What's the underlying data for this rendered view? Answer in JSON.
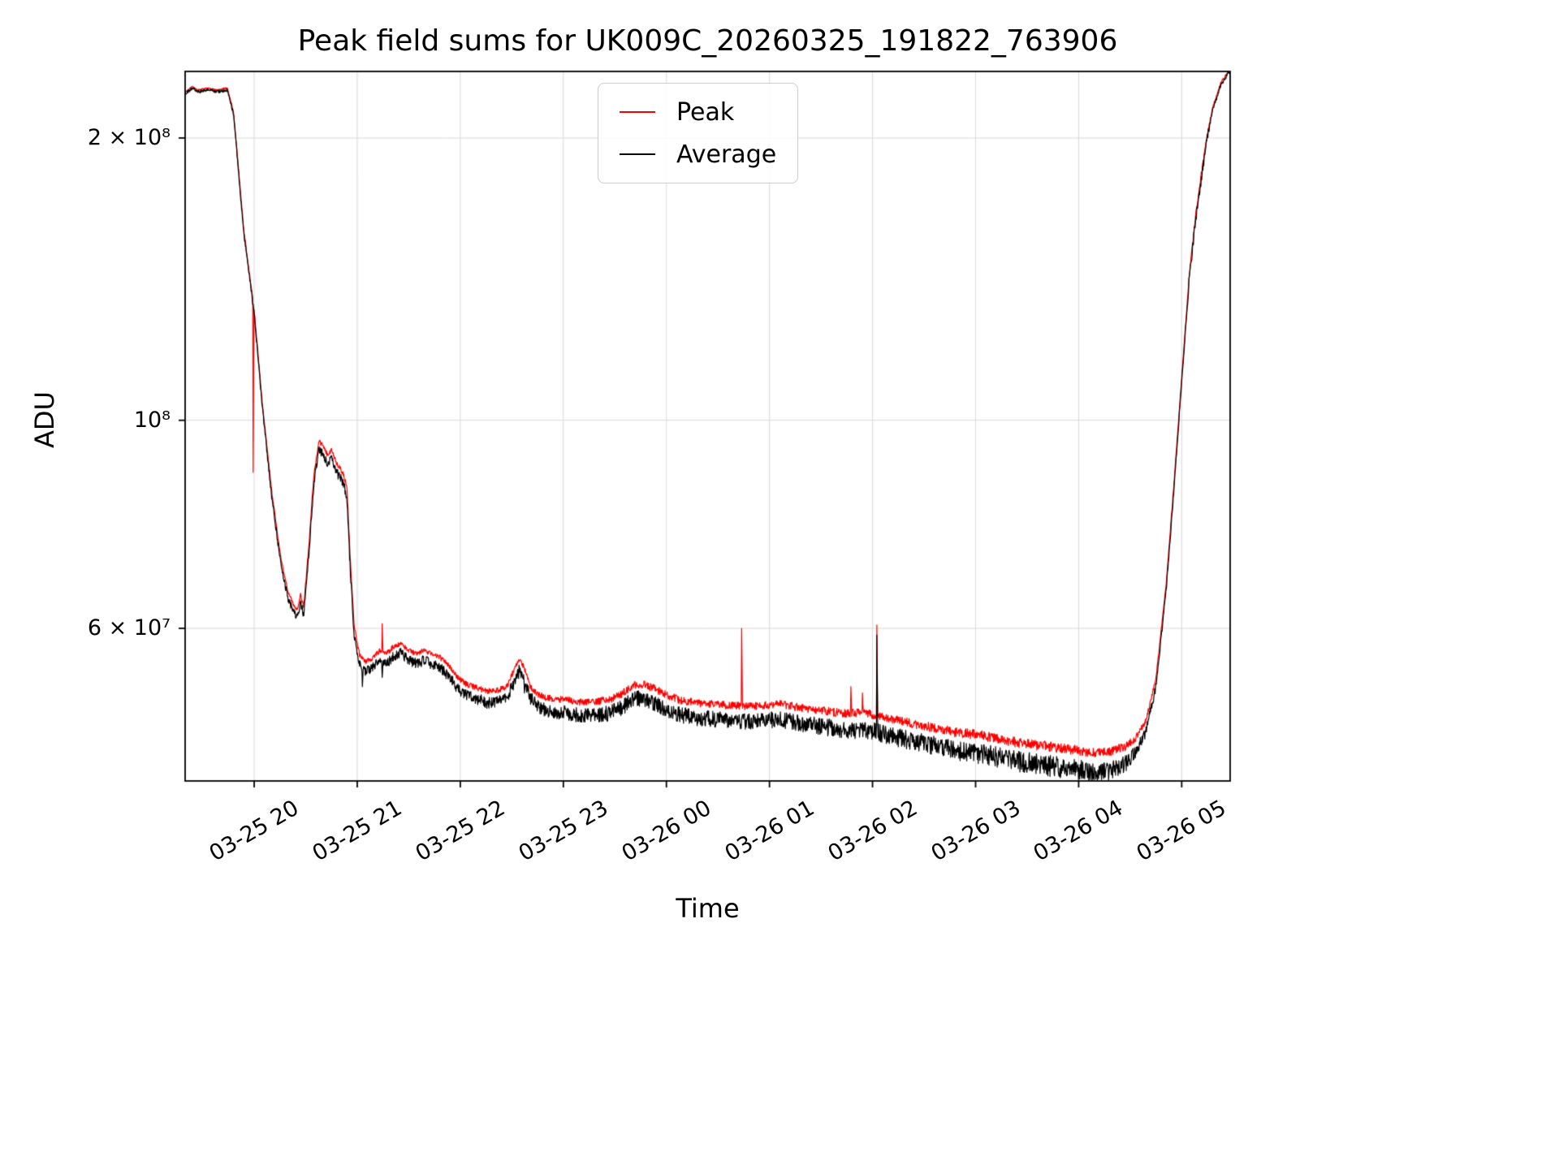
{
  "chart_data": {
    "type": "line",
    "title": "Peak field sums for UK009C_20260325_191822_763906",
    "xlabel": "Time",
    "ylabel": "ADU",
    "y_scale": "log",
    "grid": true,
    "legend": {
      "position": "upper center",
      "entries": [
        {
          "label": "Peak",
          "color": "#ff0000"
        },
        {
          "label": "Average",
          "color": "#000000"
        }
      ]
    },
    "x_unit": "hours since 03-25 00:00",
    "x_domain_hours": [
      19.33,
      29.47
    ],
    "y_domain": [
      41250000.0,
      235500000.0
    ],
    "x_ticks": [
      {
        "t": 20,
        "label": "03-25 20"
      },
      {
        "t": 21,
        "label": "03-25 21"
      },
      {
        "t": 22,
        "label": "03-25 22"
      },
      {
        "t": 23,
        "label": "03-25 23"
      },
      {
        "t": 24,
        "label": "03-26 00"
      },
      {
        "t": 25,
        "label": "03-26 01"
      },
      {
        "t": 26,
        "label": "03-26 02"
      },
      {
        "t": 27,
        "label": "03-26 03"
      },
      {
        "t": 28,
        "label": "03-26 04"
      },
      {
        "t": 29,
        "label": "03-26 05"
      }
    ],
    "y_ticks": [
      {
        "v": 200000000.0,
        "label": "2 × 10⁸"
      },
      {
        "v": 100000000.0,
        "label": "10⁸"
      },
      {
        "v": 60000000.0,
        "label": "6 × 10⁷"
      }
    ],
    "base_curve": [
      [
        19.33,
        223000000.0
      ],
      [
        19.4,
        226000000.0
      ],
      [
        19.45,
        224000000.0
      ],
      [
        19.55,
        225000000.0
      ],
      [
        19.65,
        224000000.0
      ],
      [
        19.74,
        225000000.0
      ],
      [
        19.8,
        212000000.0
      ],
      [
        19.9,
        158000000.0
      ],
      [
        20.0,
        130000000.0
      ],
      [
        20.08,
        103000000.0
      ],
      [
        20.17,
        83000000.0
      ],
      [
        20.26,
        70000000.0
      ],
      [
        20.33,
        64500000.0
      ],
      [
        20.38,
        62500000.0
      ],
      [
        20.42,
        61500000.0
      ],
      [
        20.45,
        64000000.0
      ],
      [
        20.48,
        62000000.0
      ],
      [
        20.53,
        72000000.0
      ],
      [
        20.58,
        86000000.0
      ],
      [
        20.63,
        93000000.0
      ],
      [
        20.67,
        92000000.0
      ],
      [
        20.71,
        90000000.0
      ],
      [
        20.75,
        91000000.0
      ],
      [
        20.8,
        88000000.0
      ],
      [
        20.86,
        86000000.0
      ],
      [
        20.9,
        83000000.0
      ],
      [
        20.93,
        70000000.0
      ],
      [
        20.97,
        59000000.0
      ],
      [
        21.02,
        55000000.0
      ],
      [
        21.08,
        54000000.0
      ],
      [
        21.15,
        54500000.0
      ],
      [
        21.22,
        55500000.0
      ],
      [
        21.28,
        55000000.0
      ],
      [
        21.35,
        56000000.0
      ],
      [
        21.42,
        56500000.0
      ],
      [
        21.5,
        55500000.0
      ],
      [
        21.58,
        55000000.0
      ],
      [
        21.65,
        55500000.0
      ],
      [
        21.72,
        55000000.0
      ],
      [
        21.8,
        54500000.0
      ],
      [
        21.88,
        53500000.0
      ],
      [
        21.96,
        52000000.0
      ],
      [
        22.05,
        51000000.0
      ],
      [
        22.15,
        50500000.0
      ],
      [
        22.25,
        50000000.0
      ],
      [
        22.35,
        50000000.0
      ],
      [
        22.45,
        50500000.0
      ],
      [
        22.52,
        52500000.0
      ],
      [
        22.57,
        54000000.0
      ],
      [
        22.62,
        53000000.0
      ],
      [
        22.68,
        50500000.0
      ],
      [
        22.76,
        49500000.0
      ],
      [
        22.85,
        49000000.0
      ],
      [
        23.0,
        48800000.0
      ],
      [
        23.15,
        48500000.0
      ],
      [
        23.3,
        48500000.0
      ],
      [
        23.45,
        48700000.0
      ],
      [
        23.58,
        49500000.0
      ],
      [
        23.68,
        50500000.0
      ],
      [
        23.78,
        50500000.0
      ],
      [
        23.88,
        50000000.0
      ],
      [
        24.0,
        49200000.0
      ],
      [
        24.15,
        48500000.0
      ],
      [
        24.3,
        48200000.0
      ],
      [
        24.5,
        48000000.0
      ],
      [
        24.7,
        47800000.0
      ],
      [
        24.9,
        47800000.0
      ],
      [
        25.1,
        48000000.0
      ],
      [
        25.3,
        47500000.0
      ],
      [
        25.5,
        47200000.0
      ],
      [
        25.7,
        46800000.0
      ],
      [
        25.9,
        46800000.0
      ],
      [
        26.05,
        46500000.0
      ],
      [
        26.2,
        46000000.0
      ],
      [
        26.4,
        45500000.0
      ],
      [
        26.6,
        45000000.0
      ],
      [
        26.8,
        44500000.0
      ],
      [
        27.0,
        44200000.0
      ],
      [
        27.2,
        43800000.0
      ],
      [
        27.4,
        43300000.0
      ],
      [
        27.6,
        43000000.0
      ],
      [
        27.8,
        42700000.0
      ],
      [
        28.0,
        42400000.0
      ],
      [
        28.15,
        42200000.0
      ],
      [
        28.3,
        42300000.0
      ],
      [
        28.45,
        43000000.0
      ],
      [
        28.55,
        44200000.0
      ],
      [
        28.65,
        46500000.0
      ],
      [
        28.75,
        52000000.0
      ],
      [
        28.85,
        66000000.0
      ],
      [
        28.93,
        86000000.0
      ],
      [
        29.0,
        110000000.0
      ],
      [
        29.07,
        140000000.0
      ],
      [
        29.13,
        162000000.0
      ],
      [
        29.18,
        178000000.0
      ],
      [
        29.24,
        198000000.0
      ],
      [
        29.3,
        214000000.0
      ],
      [
        29.38,
        228000000.0
      ],
      [
        29.47,
        236000000.0
      ]
    ],
    "peak_gap_fraction": [
      [
        19.33,
        0.003
      ],
      [
        19.8,
        0.004
      ],
      [
        20.1,
        0.008
      ],
      [
        20.35,
        0.015
      ],
      [
        20.9,
        0.02
      ],
      [
        21.5,
        0.02
      ],
      [
        22.5,
        0.025
      ],
      [
        24.0,
        0.03
      ],
      [
        26.0,
        0.035
      ],
      [
        27.5,
        0.04
      ],
      [
        28.4,
        0.04
      ],
      [
        28.7,
        0.02
      ],
      [
        29.0,
        0.008
      ],
      [
        29.47,
        0.003
      ]
    ],
    "noise_amplitude": [
      [
        19.33,
        0.004
      ],
      [
        19.78,
        0.004
      ],
      [
        19.85,
        0.006
      ],
      [
        20.3,
        0.008
      ],
      [
        20.5,
        0.01
      ],
      [
        21.0,
        0.012
      ],
      [
        21.8,
        0.013
      ],
      [
        22.3,
        0.015
      ],
      [
        23.0,
        0.018
      ],
      [
        24.0,
        0.02
      ],
      [
        25.0,
        0.02
      ],
      [
        26.0,
        0.022
      ],
      [
        27.0,
        0.025
      ],
      [
        28.0,
        0.027
      ],
      [
        28.5,
        0.02
      ],
      [
        28.75,
        0.008
      ],
      [
        29.0,
        0.006
      ],
      [
        29.12,
        0.014
      ],
      [
        29.2,
        0.014
      ],
      [
        29.3,
        0.005
      ],
      [
        29.47,
        0.004
      ]
    ],
    "peak_spikes": [
      [
        19.99,
        88000000.0
      ],
      [
        21.24,
        60700000.0
      ],
      [
        24.73,
        60000000.0
      ],
      [
        25.28,
        49500000.0
      ],
      [
        25.79,
        52000000.0
      ],
      [
        25.9,
        51200000.0
      ],
      [
        26.04,
        60500000.0
      ],
      [
        27.03,
        46200000.0
      ]
    ],
    "avg_spikes": [
      [
        21.05,
        52000000.0
      ],
      [
        21.24,
        53200000.0
      ],
      [
        22.62,
        51200000.0
      ],
      [
        26.04,
        59000000.0
      ]
    ],
    "colors": {
      "peak": "#ff0000",
      "average": "#000000",
      "grid": "#d9d9d9",
      "frame": "#000000",
      "background": "#ffffff"
    }
  }
}
